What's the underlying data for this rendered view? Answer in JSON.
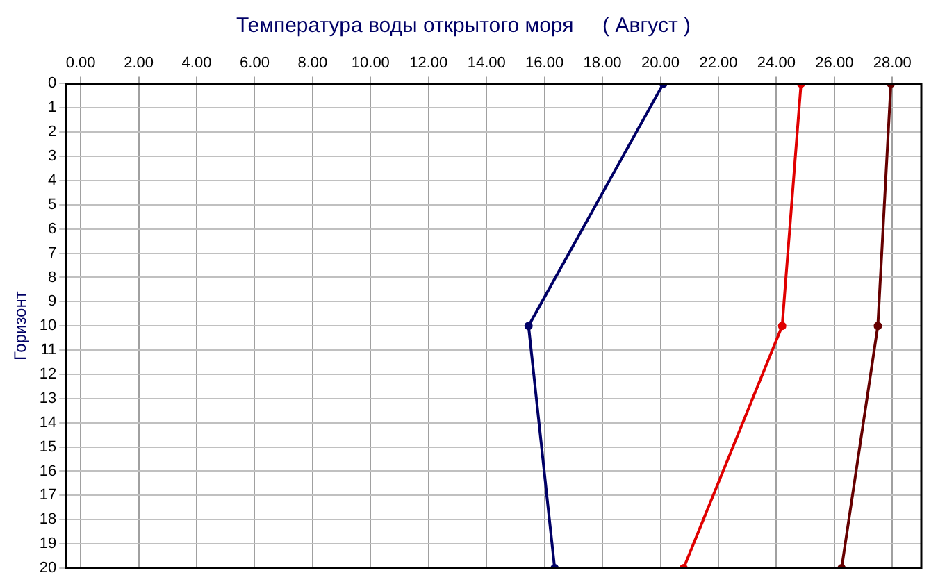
{
  "chart_data": {
    "type": "line",
    "title": "Температура воды открытого моря     ( Август )",
    "ylabel": "Горизонт",
    "xlim": [
      -0.5,
      29
    ],
    "xticks": [
      {
        "value": 0,
        "label": "0.00"
      },
      {
        "value": 2,
        "label": "2.00"
      },
      {
        "value": 4,
        "label": "4.00"
      },
      {
        "value": 6,
        "label": "6.00"
      },
      {
        "value": 8,
        "label": "8.00"
      },
      {
        "value": 10,
        "label": "10.00"
      },
      {
        "value": 12,
        "label": "12.00"
      },
      {
        "value": 14,
        "label": "14.00"
      },
      {
        "value": 16,
        "label": "16.00"
      },
      {
        "value": 18,
        "label": "18.00"
      },
      {
        "value": 20,
        "label": "20.00"
      },
      {
        "value": 22,
        "label": "22.00"
      },
      {
        "value": 24,
        "label": "24.00"
      },
      {
        "value": 26,
        "label": "26.00"
      },
      {
        "value": 28,
        "label": "28.00"
      }
    ],
    "ylim": [
      20,
      0
    ],
    "yticks": [
      0,
      1,
      2,
      3,
      4,
      5,
      6,
      7,
      8,
      9,
      10,
      11,
      12,
      13,
      14,
      15,
      16,
      17,
      18,
      19,
      20
    ],
    "grid": true,
    "marker": "circle",
    "line_style": "solid",
    "series": [
      {
        "color": "#000066",
        "x": [
          20.1,
          15.45,
          16.35
        ],
        "values": [
          0,
          10,
          20
        ]
      },
      {
        "color": "#e00000",
        "x": [
          24.85,
          24.2,
          20.8
        ],
        "values": [
          0,
          10,
          20
        ]
      },
      {
        "color": "#660000",
        "x": [
          27.95,
          27.5,
          26.25
        ],
        "values": [
          0,
          10,
          20
        ]
      }
    ]
  }
}
